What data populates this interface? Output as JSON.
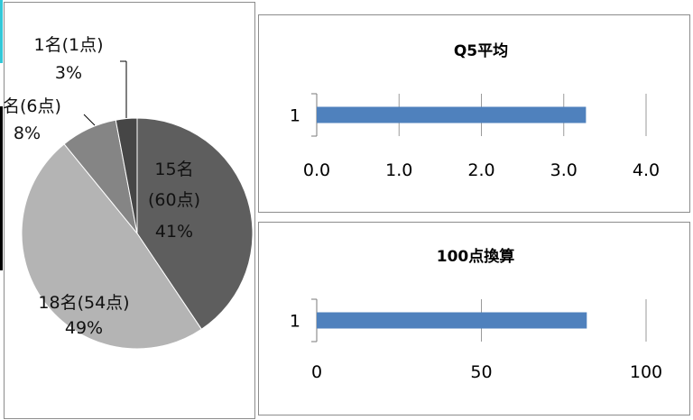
{
  "chart_data": [
    {
      "type": "pie",
      "title": "",
      "slices": [
        {
          "label": "15名",
          "label_line2": "(60点)",
          "percent_label": "41%",
          "value": 41,
          "color": "#5e5e5e"
        },
        {
          "label": "18名(54点)",
          "percent_label": "49%",
          "value": 49,
          "color": "#b4b4b4"
        },
        {
          "label": "名(6点)",
          "percent_label": "8%",
          "value": 8,
          "color": "#858585"
        },
        {
          "label": "1名(1点)",
          "percent_label": "3%",
          "value": 3,
          "color": "#464646"
        }
      ],
      "legend": "none"
    },
    {
      "type": "bar",
      "orientation": "horizontal",
      "title": "Q5平均",
      "categories": [
        "1"
      ],
      "values": [
        3.27
      ],
      "xlim": [
        0,
        4
      ],
      "x_ticks": [
        "0.0",
        "1.0",
        "2.0",
        "3.0",
        "4.0"
      ],
      "color": "#4f81bd",
      "grid": true
    },
    {
      "type": "bar",
      "orientation": "horizontal",
      "title": "100点換算",
      "categories": [
        "1"
      ],
      "values": [
        82
      ],
      "xlim": [
        0,
        100
      ],
      "x_ticks": [
        "0",
        "50",
        "100"
      ],
      "color": "#4f81bd",
      "grid": true
    }
  ]
}
